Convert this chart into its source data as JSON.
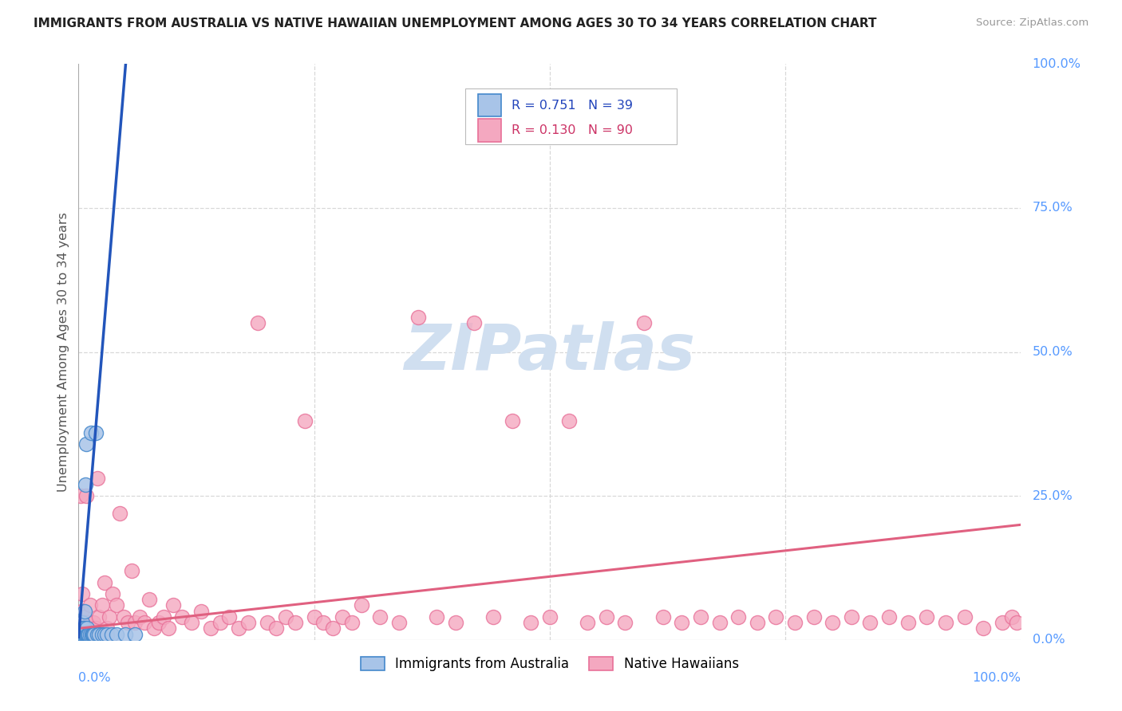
{
  "title": "IMMIGRANTS FROM AUSTRALIA VS NATIVE HAWAIIAN UNEMPLOYMENT AMONG AGES 30 TO 34 YEARS CORRELATION CHART",
  "source": "Source: ZipAtlas.com",
  "ylabel": "Unemployment Among Ages 30 to 34 years",
  "legend_label1": "Immigrants from Australia",
  "legend_label2": "Native Hawaiians",
  "R1": "0.751",
  "N1": "39",
  "R2": "0.130",
  "N2": "90",
  "color_australia_fill": "#a8c4e8",
  "color_australia_edge": "#4488cc",
  "color_hawaii_fill": "#f4a8c0",
  "color_hawaii_edge": "#e87098",
  "color_line_australia": "#2255bb",
  "color_line_hawaii": "#e06080",
  "watermark_color": "#d0dff0",
  "background_color": "#ffffff",
  "grid_color": "#d8d8d8",
  "tick_color": "#5599ff",
  "australia_x": [
    0.002,
    0.002,
    0.003,
    0.003,
    0.003,
    0.004,
    0.004,
    0.004,
    0.005,
    0.005,
    0.005,
    0.006,
    0.006,
    0.006,
    0.007,
    0.007,
    0.008,
    0.008,
    0.009,
    0.009,
    0.01,
    0.01,
    0.011,
    0.012,
    0.013,
    0.014,
    0.015,
    0.016,
    0.017,
    0.018,
    0.02,
    0.022,
    0.025,
    0.028,
    0.03,
    0.035,
    0.04,
    0.05,
    0.06
  ],
  "australia_y": [
    0.01,
    0.01,
    0.02,
    0.01,
    0.01,
    0.01,
    0.03,
    0.01,
    0.01,
    0.02,
    0.01,
    0.05,
    0.01,
    0.02,
    0.01,
    0.27,
    0.01,
    0.34,
    0.01,
    0.02,
    0.01,
    0.01,
    0.01,
    0.01,
    0.36,
    0.01,
    0.01,
    0.01,
    0.01,
    0.36,
    0.01,
    0.01,
    0.01,
    0.01,
    0.01,
    0.01,
    0.01,
    0.01,
    0.01
  ],
  "hawaii_x": [
    0.002,
    0.003,
    0.004,
    0.005,
    0.006,
    0.007,
    0.008,
    0.009,
    0.01,
    0.012,
    0.014,
    0.016,
    0.018,
    0.02,
    0.022,
    0.025,
    0.028,
    0.03,
    0.033,
    0.036,
    0.04,
    0.044,
    0.048,
    0.052,
    0.056,
    0.06,
    0.065,
    0.07,
    0.075,
    0.08,
    0.085,
    0.09,
    0.095,
    0.1,
    0.11,
    0.12,
    0.13,
    0.14,
    0.15,
    0.16,
    0.17,
    0.18,
    0.19,
    0.2,
    0.21,
    0.22,
    0.23,
    0.24,
    0.25,
    0.26,
    0.27,
    0.28,
    0.29,
    0.3,
    0.32,
    0.34,
    0.36,
    0.38,
    0.4,
    0.42,
    0.44,
    0.46,
    0.48,
    0.5,
    0.52,
    0.54,
    0.56,
    0.58,
    0.6,
    0.62,
    0.64,
    0.66,
    0.68,
    0.7,
    0.72,
    0.74,
    0.76,
    0.78,
    0.8,
    0.82,
    0.84,
    0.86,
    0.88,
    0.9,
    0.92,
    0.94,
    0.96,
    0.98,
    0.99,
    0.995
  ],
  "hawaii_y": [
    0.25,
    0.05,
    0.08,
    0.03,
    0.04,
    0.02,
    0.25,
    0.03,
    0.02,
    0.06,
    0.02,
    0.03,
    0.02,
    0.28,
    0.04,
    0.06,
    0.1,
    0.02,
    0.04,
    0.08,
    0.06,
    0.22,
    0.04,
    0.03,
    0.12,
    0.03,
    0.04,
    0.03,
    0.07,
    0.02,
    0.03,
    0.04,
    0.02,
    0.06,
    0.04,
    0.03,
    0.05,
    0.02,
    0.03,
    0.04,
    0.02,
    0.03,
    0.55,
    0.03,
    0.02,
    0.04,
    0.03,
    0.38,
    0.04,
    0.03,
    0.02,
    0.04,
    0.03,
    0.06,
    0.04,
    0.03,
    0.56,
    0.04,
    0.03,
    0.55,
    0.04,
    0.38,
    0.03,
    0.04,
    0.38,
    0.03,
    0.04,
    0.03,
    0.55,
    0.04,
    0.03,
    0.04,
    0.03,
    0.04,
    0.03,
    0.04,
    0.03,
    0.04,
    0.03,
    0.04,
    0.03,
    0.04,
    0.03,
    0.04,
    0.03,
    0.04,
    0.02,
    0.03,
    0.04,
    0.03
  ],
  "aus_line_x": [
    0.0,
    0.05
  ],
  "aus_line_y": [
    0.005,
    1.0
  ],
  "haw_line_x": [
    0.0,
    1.0
  ],
  "haw_line_y": [
    0.02,
    0.2
  ],
  "xlim": [
    0.0,
    1.0
  ],
  "ylim": [
    0.0,
    1.0
  ],
  "xtick_positions": [
    0.0,
    0.25,
    0.5,
    0.75,
    1.0
  ],
  "xtick_labels": [
    "0.0%",
    "",
    "",
    "",
    "100.0%"
  ],
  "ytick_right_positions": [
    0.0,
    0.25,
    0.5,
    0.75,
    1.0
  ],
  "ytick_right_labels": [
    "0.0%",
    "25.0%",
    "50.0%",
    "75.0%",
    "100.0%"
  ]
}
